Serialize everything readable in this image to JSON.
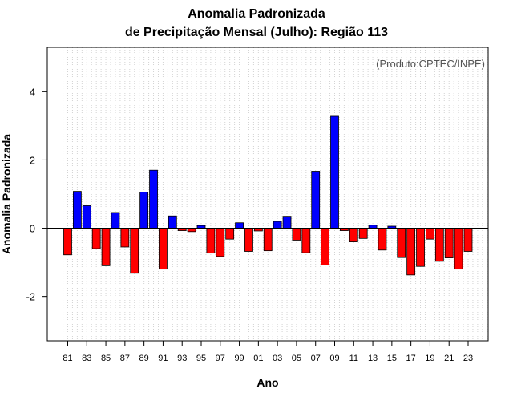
{
  "chart_data": {
    "type": "bar",
    "title_line1": "Anomalia Padronizada",
    "title_line2": "de Precipitação Mensal (Julho): Região 113",
    "xlabel": "Ano",
    "ylabel": "Anomalia Padronizada",
    "credit": "(Produto:CPTEC/INPE)",
    "ylim": [
      -3.3,
      5.3
    ],
    "yticks": [
      -2,
      0,
      2,
      4
    ],
    "ytick_labels": [
      "-2",
      "0",
      "2",
      "4"
    ],
    "x": [
      "81",
      "82",
      "83",
      "84",
      "85",
      "86",
      "87",
      "88",
      "89",
      "90",
      "91",
      "92",
      "93",
      "94",
      "95",
      "96",
      "97",
      "98",
      "99",
      "00",
      "01",
      "02",
      "03",
      "04",
      "05",
      "06",
      "07",
      "08",
      "09",
      "10",
      "11",
      "12",
      "13",
      "14",
      "15",
      "16",
      "17",
      "18",
      "19",
      "20",
      "21",
      "22",
      "23"
    ],
    "xtick_labels": [
      "81",
      "83",
      "85",
      "87",
      "89",
      "91",
      "93",
      "95",
      "97",
      "99",
      "01",
      "03",
      "05",
      "07",
      "09",
      "11",
      "13",
      "15",
      "17",
      "19",
      "21",
      "23"
    ],
    "values": [
      -0.78,
      1.08,
      0.66,
      -0.6,
      -1.1,
      0.46,
      -0.55,
      -1.32,
      1.06,
      1.7,
      -1.2,
      0.36,
      -0.07,
      -0.1,
      0.08,
      -0.73,
      -0.83,
      -0.32,
      0.16,
      -0.68,
      -0.08,
      -0.66,
      0.2,
      0.35,
      -0.35,
      -0.72,
      1.67,
      -1.08,
      3.28,
      -0.07,
      -0.4,
      -0.3,
      0.09,
      -0.64,
      0.06,
      -0.86,
      -1.37,
      -1.12,
      -0.32,
      -0.97,
      -0.87,
      -1.2,
      -0.68
    ],
    "positive_color": "#0000ff",
    "negative_color": "#ff0000",
    "grid": "vertical dotted"
  }
}
